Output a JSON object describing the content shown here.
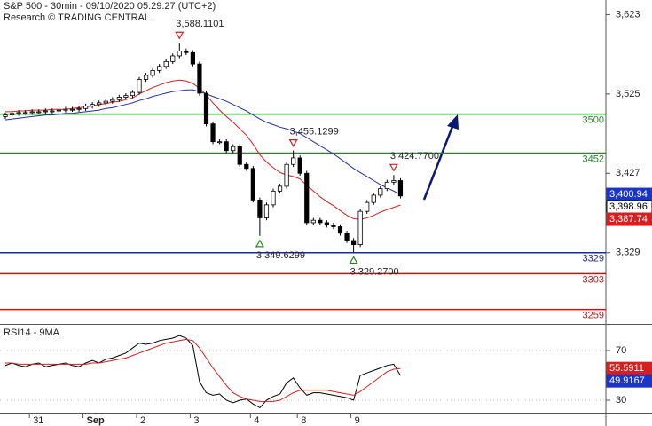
{
  "chart_data": [
    {
      "type": "candlestick",
      "title": "S&P 500 - 30min - 09/10/2020 05:29:27 (UTC+2)",
      "subtitle": "Research © TRADING CENTRAL",
      "categories": [
        null,
        null,
        null,
        null,
        "31",
        null,
        null,
        null,
        null,
        null,
        null,
        null,
        "Sep",
        null,
        null,
        null,
        null,
        null,
        null,
        null,
        "2",
        null,
        null,
        null,
        null,
        null,
        null,
        null,
        "3",
        null,
        null,
        null,
        null,
        null,
        null,
        null,
        null,
        "4",
        null,
        null,
        null,
        null,
        null,
        null,
        "8",
        null,
        null,
        null,
        null,
        null,
        null,
        null,
        "9",
        null,
        null,
        null,
        null,
        null,
        null,
        null
      ],
      "open": [
        3497,
        3499,
        3501,
        3502,
        3502,
        3503,
        3503,
        3504,
        3504,
        3505,
        3506,
        3506,
        3507,
        3510,
        3512,
        3514,
        3516,
        3518,
        3521,
        3523,
        3527,
        3543,
        3548,
        3554,
        3559,
        3565,
        3572,
        3578,
        3576,
        3562,
        3526,
        3488,
        3466,
        3466,
        3455,
        3460,
        3438,
        3433,
        3394,
        3372,
        3388,
        3405,
        3411,
        3438,
        3446,
        3427,
        3366,
        3369,
        3366,
        3363,
        3361,
        3353,
        3344,
        3339,
        3380,
        3391,
        3400,
        3408,
        3416,
        3418
      ],
      "high": [
        3502,
        3504,
        3505,
        3505,
        3506,
        3506,
        3507,
        3507,
        3508,
        3509,
        3509,
        3510,
        3513,
        3515,
        3517,
        3519,
        3521,
        3524,
        3526,
        3530,
        3546,
        3551,
        3557,
        3562,
        3568,
        3575,
        3588.1101,
        3581,
        3579,
        3565,
        3529,
        3491,
        3469,
        3469,
        3463,
        3463,
        3441,
        3436,
        3397,
        3391,
        3408,
        3414,
        3441,
        3455.1299,
        3449,
        3430,
        3372,
        3372,
        3369,
        3366,
        3364,
        3356,
        3347,
        3383,
        3394,
        3403,
        3411,
        3419,
        3424.77,
        3421
      ],
      "low": [
        3494,
        3496,
        3498,
        3499,
        3499,
        3500,
        3500,
        3501,
        3501,
        3502,
        3503,
        3503,
        3504,
        3507,
        3509,
        3511,
        3513,
        3515,
        3518,
        3520,
        3524,
        3540,
        3545,
        3551,
        3556,
        3562,
        3569,
        3573,
        3559,
        3523,
        3485,
        3463,
        3463,
        3452,
        3452,
        3435,
        3430,
        3391,
        3349.6299,
        3369,
        3385,
        3402,
        3408,
        3435,
        3424,
        3363,
        3363,
        3363,
        3360,
        3358,
        3350,
        3341,
        3329.27,
        3336,
        3377,
        3388,
        3397,
        3405,
        3413,
        3396
      ],
      "close": [
        3499,
        3501,
        3502,
        3502,
        3503,
        3503,
        3504,
        3504,
        3505,
        3506,
        3506,
        3507,
        3510,
        3512,
        3514,
        3516,
        3518,
        3521,
        3523,
        3527,
        3543,
        3548,
        3554,
        3559,
        3565,
        3572,
        3578,
        3576,
        3562,
        3526,
        3488,
        3466,
        3466,
        3455,
        3460,
        3438,
        3433,
        3394,
        3372,
        3388,
        3405,
        3411,
        3438,
        3446,
        3427,
        3366,
        3369,
        3366,
        3363,
        3361,
        3353,
        3344,
        3339,
        3380,
        3391,
        3400,
        3408,
        3416,
        3418,
        3398.96
      ],
      "high_labels": [
        null,
        null,
        null,
        null,
        null,
        null,
        null,
        null,
        null,
        null,
        null,
        null,
        null,
        null,
        null,
        null,
        null,
        null,
        null,
        null,
        null,
        null,
        null,
        null,
        null,
        null,
        "3,588.1101",
        null,
        null,
        null,
        null,
        null,
        null,
        null,
        null,
        null,
        null,
        null,
        null,
        null,
        null,
        null,
        null,
        "3,455.1299",
        null,
        null,
        null,
        null,
        null,
        null,
        null,
        null,
        null,
        null,
        null,
        null,
        null,
        null,
        "3,424.7700",
        null
      ],
      "low_labels": [
        null,
        null,
        null,
        null,
        null,
        null,
        null,
        null,
        null,
        null,
        null,
        null,
        null,
        null,
        null,
        null,
        null,
        null,
        null,
        null,
        null,
        null,
        null,
        null,
        null,
        null,
        null,
        null,
        null,
        null,
        null,
        null,
        null,
        null,
        null,
        null,
        null,
        null,
        "3,349.6299",
        null,
        null,
        null,
        null,
        null,
        null,
        null,
        null,
        null,
        null,
        null,
        null,
        null,
        "3,329.2700",
        null,
        null,
        null,
        null,
        null,
        null,
        null
      ],
      "close_labels": [
        null,
        null,
        null,
        null,
        null,
        null,
        null,
        null,
        null,
        null,
        null,
        null,
        null,
        null,
        null,
        null,
        null,
        null,
        null,
        null,
        null,
        null,
        null,
        null,
        null,
        null,
        null,
        null,
        null,
        null,
        null,
        null,
        null,
        null,
        null,
        null,
        null,
        null,
        null,
        null,
        null,
        null,
        null,
        null,
        null,
        null,
        null,
        null,
        null,
        null,
        null,
        null,
        null,
        null,
        null,
        null,
        null,
        null,
        null,
        "3,398.96"
      ],
      "up_color": "#ffffff",
      "down_color": "#000000",
      "series": [
        {
          "color": "#d42020",
          "label_color": "#d42020",
          "values": [
            3503,
            3503,
            3504,
            3504,
            3505,
            3505,
            3505,
            3506,
            3506,
            3506,
            3507,
            3508,
            3509,
            3510,
            3512,
            3513,
            3515,
            3516,
            3518,
            3520,
            3525,
            3529,
            3533,
            3536,
            3539,
            3541,
            3542,
            3541,
            3538,
            3532,
            3524,
            3514,
            3505,
            3497,
            3490,
            3482,
            3474,
            3463,
            3450,
            3441,
            3434,
            3428,
            3425,
            3423,
            3420,
            3412,
            3405,
            3398,
            3392,
            3387,
            3381,
            3375,
            3371,
            3370,
            3372,
            3375,
            3379,
            3382,
            3385,
            3387.74
          ],
          "value_labels": [
            null,
            null,
            null,
            null,
            null,
            null,
            null,
            null,
            null,
            null,
            null,
            null,
            null,
            null,
            null,
            null,
            null,
            null,
            null,
            null,
            null,
            null,
            null,
            null,
            null,
            null,
            null,
            null,
            null,
            null,
            null,
            null,
            null,
            null,
            null,
            null,
            null,
            null,
            null,
            null,
            null,
            null,
            null,
            null,
            null,
            null,
            null,
            null,
            null,
            null,
            null,
            null,
            null,
            null,
            null,
            null,
            null,
            null,
            null,
            "3,387.74"
          ]
        },
        {
          "color": "#24319a",
          "label_color": "#1a35c8",
          "values": [
            3493,
            3494,
            3495,
            3496,
            3497,
            3498,
            3499,
            3499,
            3500,
            3501,
            3501,
            3502,
            3503,
            3504,
            3505,
            3507,
            3508,
            3510,
            3512,
            3514,
            3517,
            3519,
            3522,
            3524,
            3526,
            3528,
            3529,
            3530,
            3530,
            3528,
            3525,
            3522,
            3519,
            3516,
            3512,
            3508,
            3504,
            3499,
            3494,
            3490,
            3487,
            3484,
            3482,
            3479,
            3476,
            3471,
            3466,
            3461,
            3456,
            3451,
            3445,
            3439,
            3433,
            3428,
            3423,
            3418,
            3413,
            3409,
            3405,
            3400.94
          ],
          "value_labels": [
            null,
            null,
            null,
            null,
            null,
            null,
            null,
            null,
            null,
            null,
            null,
            null,
            null,
            null,
            null,
            null,
            null,
            null,
            null,
            null,
            null,
            null,
            null,
            null,
            null,
            null,
            null,
            null,
            null,
            null,
            null,
            null,
            null,
            null,
            null,
            null,
            null,
            null,
            null,
            null,
            null,
            null,
            null,
            null,
            null,
            null,
            null,
            null,
            null,
            null,
            null,
            null,
            null,
            null,
            null,
            null,
            null,
            null,
            null,
            "3,400.94"
          ]
        }
      ],
      "levels": [
        {
          "value": 3500,
          "color": "#1f8a1f"
        },
        {
          "value": 3452,
          "color": "#1f8a1f"
        },
        {
          "value": 3329,
          "color": "#1a2a9a"
        },
        {
          "value": 3303,
          "color": "#cc1010"
        },
        {
          "value": 3259,
          "color": "#cc1010"
        }
      ],
      "ylim": [
        3241,
        3641
      ],
      "yticks": [
        {
          "value": 3623,
          "label": "3,623"
        },
        {
          "value": 3525,
          "label": "3,525"
        },
        {
          "value": 3427,
          "label": "3,427"
        },
        {
          "value": 3329,
          "label": "3,329"
        }
      ]
    },
    {
      "type": "line",
      "title": "RSI14 - 9MA",
      "series": [
        {
          "color": "#000000",
          "label_color": "#1a35c8",
          "values": [
            58,
            60,
            58,
            57,
            59,
            60,
            57,
            58,
            59,
            60,
            58,
            57,
            60,
            62,
            60,
            63,
            64,
            66,
            68,
            72,
            76,
            75,
            76,
            78,
            79,
            80,
            82,
            80,
            74,
            45,
            36,
            34,
            35,
            30,
            28,
            30,
            31,
            27,
            24,
            30,
            33,
            35,
            44,
            48,
            40,
            34,
            36,
            36,
            35,
            34,
            33,
            32,
            30,
            50,
            52,
            54,
            56,
            58,
            59,
            49.9167
          ],
          "value_labels": [
            null,
            null,
            null,
            null,
            null,
            null,
            null,
            null,
            null,
            null,
            null,
            null,
            null,
            null,
            null,
            null,
            null,
            null,
            null,
            null,
            null,
            null,
            null,
            null,
            null,
            null,
            null,
            null,
            null,
            null,
            null,
            null,
            null,
            null,
            null,
            null,
            null,
            null,
            null,
            null,
            null,
            null,
            null,
            null,
            null,
            null,
            null,
            null,
            null,
            null,
            null,
            null,
            null,
            null,
            null,
            null,
            null,
            null,
            null,
            "49.9167"
          ]
        },
        {
          "color": "#d42020",
          "label_color": "#d42020",
          "values": [
            60,
            60,
            59,
            59,
            59,
            59,
            59,
            59,
            59,
            59,
            59,
            59,
            59,
            60,
            60,
            61,
            62,
            63,
            64,
            66,
            68,
            70,
            72,
            74,
            76,
            77,
            78,
            79,
            78,
            72,
            64,
            56,
            49,
            42,
            36,
            33,
            31,
            30,
            29,
            29,
            29,
            30,
            33,
            36,
            38,
            38,
            38,
            38,
            38,
            37,
            36,
            35,
            34,
            37,
            41,
            45,
            49,
            53,
            55,
            55.5911
          ],
          "value_labels": [
            null,
            null,
            null,
            null,
            null,
            null,
            null,
            null,
            null,
            null,
            null,
            null,
            null,
            null,
            null,
            null,
            null,
            null,
            null,
            null,
            null,
            null,
            null,
            null,
            null,
            null,
            null,
            null,
            null,
            null,
            null,
            null,
            null,
            null,
            null,
            null,
            null,
            null,
            null,
            null,
            null,
            null,
            null,
            null,
            null,
            null,
            null,
            null,
            null,
            null,
            null,
            null,
            null,
            null,
            null,
            null,
            null,
            null,
            null,
            "55.5911"
          ]
        }
      ],
      "ylim": [
        20,
        90
      ],
      "yticks": [
        70,
        30
      ],
      "grid": true
    }
  ]
}
